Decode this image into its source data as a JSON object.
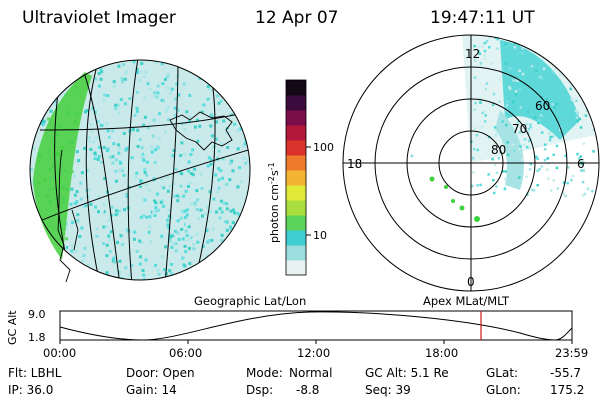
{
  "header": {
    "instrument": "Ultraviolet Imager",
    "date": "12 Apr 07",
    "time": "19:47:11 UT"
  },
  "globe": {
    "caption": "Geographic Lat/Lon",
    "colors": {
      "outline": "#000000",
      "land_green": "#3cd23c",
      "low_cyan": "#55dcdc",
      "light": "#bfe6e6"
    }
  },
  "colorbar": {
    "unit_label": "photon cm",
    "unit_sup1": "-2",
    "unit_mid": "s",
    "unit_sup2": "-1",
    "ticks": [
      "100",
      "10"
    ],
    "colors": [
      "#e8f2f2",
      "#9cdde0",
      "#3ecdd0",
      "#5cd35a",
      "#a8df3e",
      "#e2ea38",
      "#f3b531",
      "#ee7a2c",
      "#d9332b",
      "#b3183c",
      "#7a0f4a",
      "#3a0b3c",
      "#120816"
    ]
  },
  "polar": {
    "caption": "Apex MLat/MLT",
    "mlt_labels": {
      "top": "12",
      "bottom": "0",
      "left": "18",
      "right": "6"
    },
    "lat_labels": [
      "60",
      "70",
      "80"
    ]
  },
  "timeline": {
    "axis_label": "GC Alt",
    "y_ticks": [
      "9.0",
      "1.8"
    ],
    "x_ticks": [
      "00:00",
      "06:00",
      "12:00",
      "18:00",
      "23:59"
    ],
    "marker_time": "19:47",
    "marker_color": "#d01818"
  },
  "status": {
    "flt": "Flt: LBHL",
    "ip": "IP: 36.0",
    "door": "Door: Open",
    "gain": "Gain: 14",
    "mode_label": "Mode:",
    "mode_value": "Normal",
    "dsp_label": "Dsp:",
    "dsp_value": "-8.8",
    "gc_alt": "GC Alt: 5.1 Re",
    "seq": "Seq: 39",
    "glat_label": "GLat:",
    "glat_value": "-55.7",
    "glon_label": "GLon:",
    "glon_value": "175.2"
  }
}
